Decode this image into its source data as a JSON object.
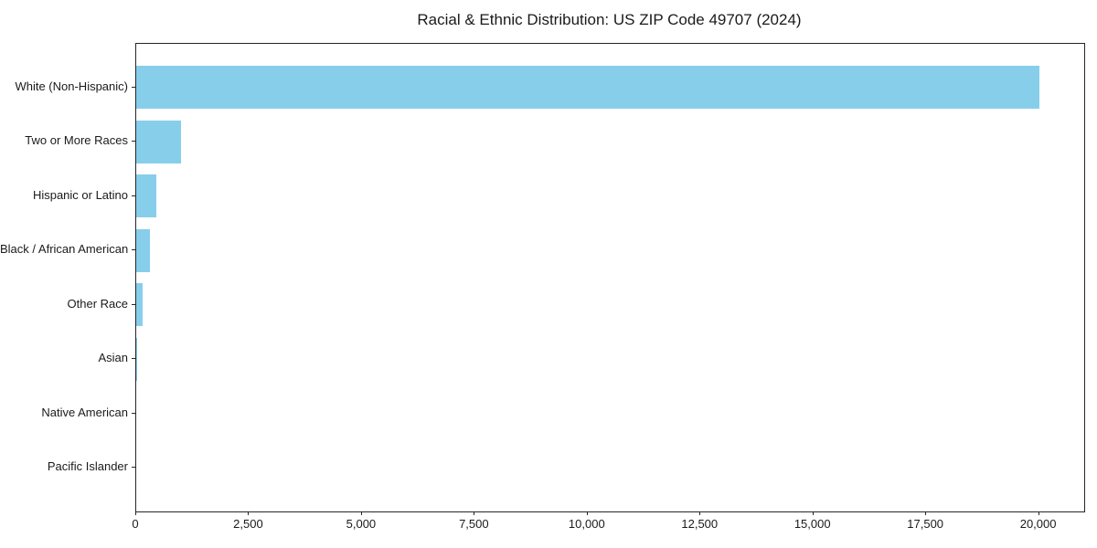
{
  "chart_data": {
    "type": "bar",
    "orientation": "horizontal",
    "title": "Racial & Ethnic Distribution: US ZIP Code 49707 (2024)",
    "categories": [
      "White (Non-Hispanic)",
      "Two or More Races",
      "Hispanic or Latino",
      "Black / African American",
      "Other Race",
      "Asian",
      "Native American",
      "Pacific Islander"
    ],
    "values": [
      20000,
      1000,
      450,
      300,
      150,
      25,
      0,
      0
    ],
    "xlabel": "",
    "ylabel": "",
    "xlim": [
      0,
      21000
    ],
    "xticks": [
      0,
      2500,
      5000,
      7500,
      10000,
      12500,
      15000,
      17500,
      20000
    ],
    "xtick_labels": [
      "0",
      "2,500",
      "5,000",
      "7,500",
      "10,000",
      "12,500",
      "15,000",
      "17,500",
      "20,000"
    ],
    "grid": false,
    "legend": false,
    "bar_color": "#87CEEB",
    "axis_color": "#262626",
    "text_color": "#1a1a1a",
    "background_color": "#ffffff"
  }
}
